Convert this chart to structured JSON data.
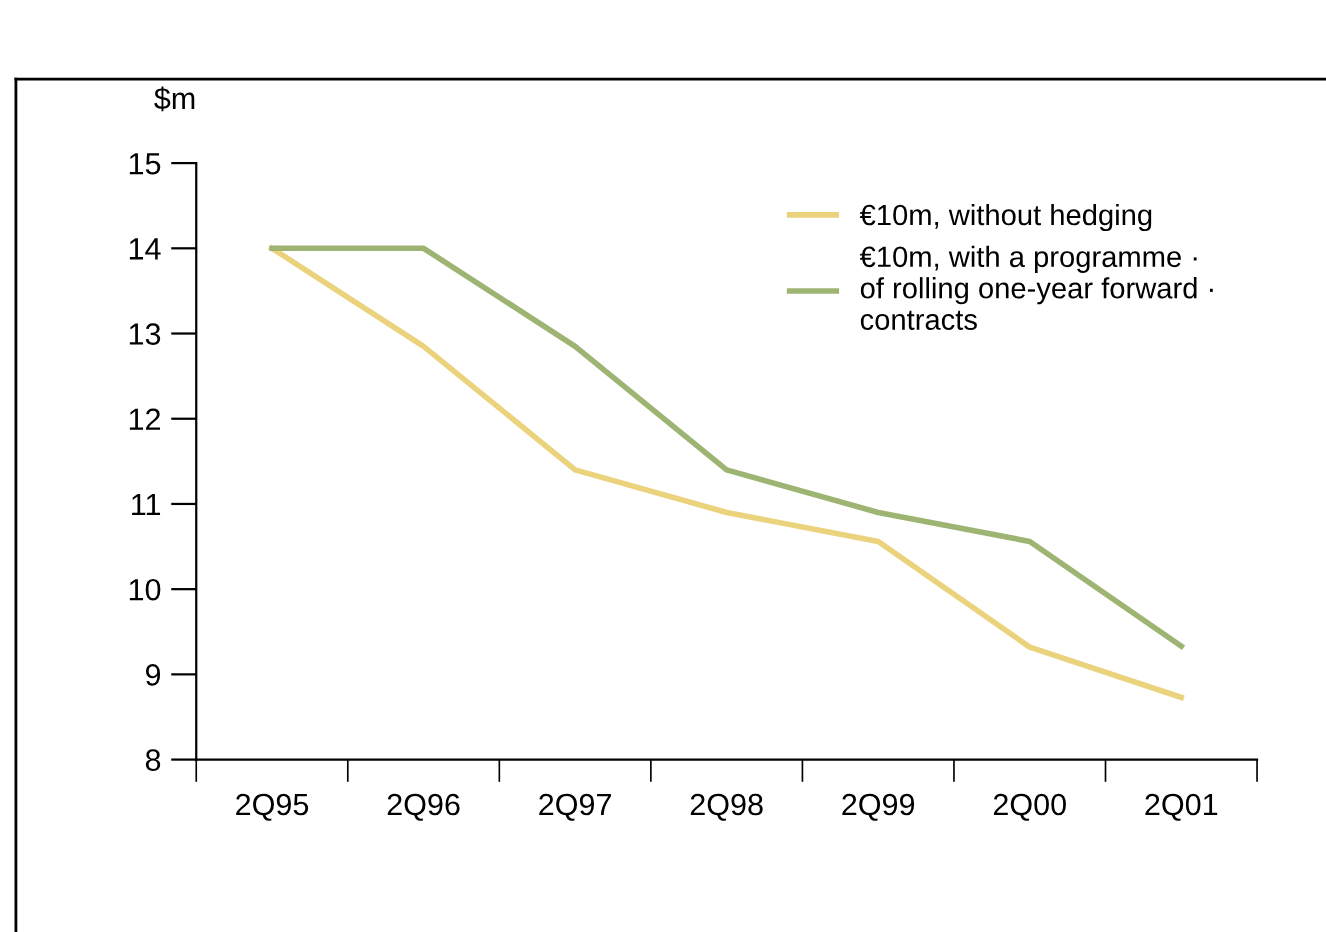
{
  "chart_data": {
    "type": "line",
    "ylabel": "$m",
    "categories": [
      "2Q95",
      "2Q96",
      "2Q97",
      "2Q98",
      "2Q99",
      "2Q00",
      "2Q01"
    ],
    "series": [
      {
        "name": "€10m, without hedging",
        "color": "#ebd27c",
        "values": [
          14,
          12.85,
          11.4,
          10.9,
          10.56,
          9.32,
          8.73
        ]
      },
      {
        "name": "€10m, with a programme ·\nof rolling one-year forward ·\ncontracts",
        "color": "#9db472",
        "values": [
          14,
          14,
          12.85,
          11.4,
          10.9,
          10.56,
          9.33
        ]
      }
    ],
    "ylim": [
      8,
      15
    ],
    "yticks": [
      8,
      9,
      10,
      11,
      12,
      13,
      14,
      15
    ],
    "grid": false,
    "legend": "top right",
    "marker": "none",
    "line_style": "solid"
  }
}
